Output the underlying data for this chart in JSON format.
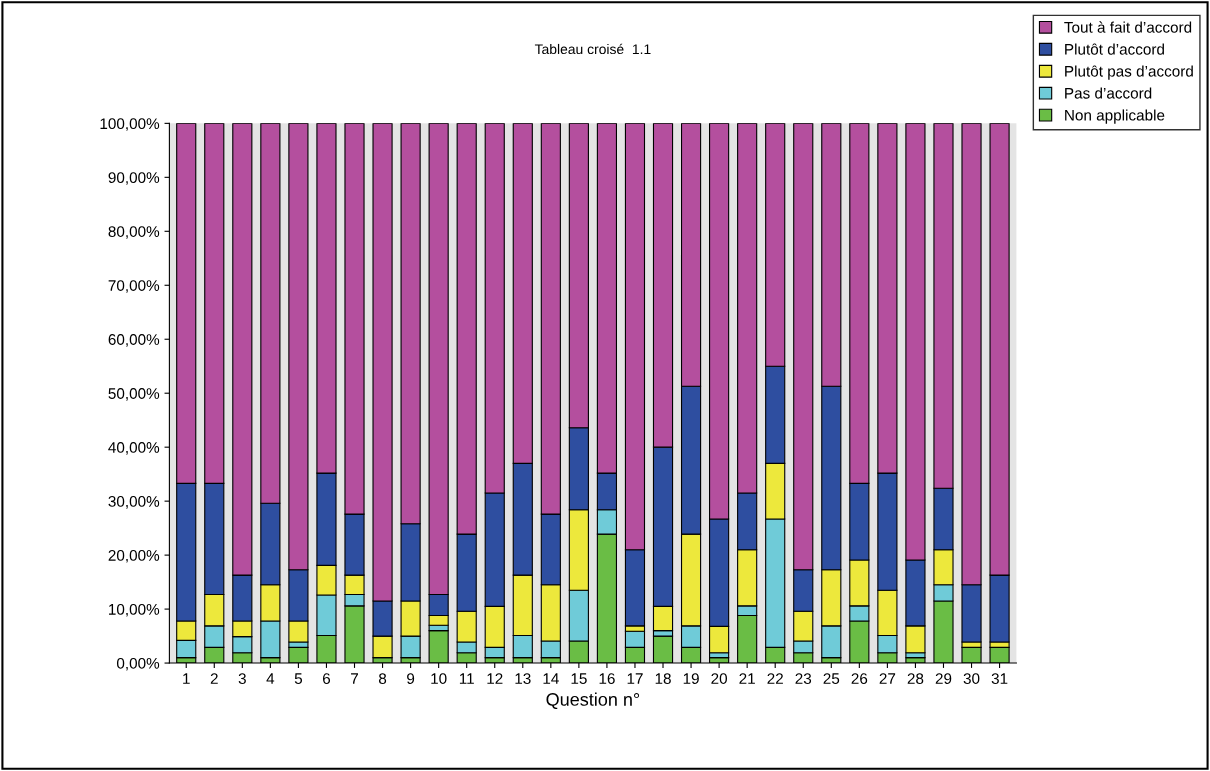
{
  "chart_data": {
    "type": "bar",
    "title": "Tableau croisé  1.1",
    "xlabel": "Question n°",
    "stacked": true,
    "categories": [
      "1",
      "2",
      "3",
      "4",
      "5",
      "6",
      "7",
      "8",
      "9",
      "10",
      "11",
      "12",
      "13",
      "14",
      "15",
      "16",
      "17",
      "18",
      "19",
      "20",
      "21",
      "22",
      "23",
      "25",
      "26",
      "27",
      "28",
      "29",
      "30",
      "31"
    ],
    "series": [
      {
        "name": "Non applicable",
        "color": "#6abd45",
        "values": [
          1,
          2.9,
          1.9,
          1,
          2.9,
          5.1,
          10.6,
          1,
          1,
          6,
          1.9,
          1,
          1,
          1,
          4.1,
          23.9,
          2.9,
          5,
          2.9,
          1,
          8.8,
          2.9,
          1.9,
          1,
          7.8,
          1.9,
          1,
          11.5,
          2.9,
          2.9
        ]
      },
      {
        "name": "Pas d’accord",
        "color": "#6fcbd8",
        "values": [
          3.2,
          4.0,
          3.0,
          6.8,
          1.0,
          7.5,
          2.1,
          0,
          4.0,
          1,
          2.0,
          1.9,
          4.1,
          3.1,
          9.4,
          4.5,
          3.0,
          1,
          4.0,
          0.9,
          1.8,
          23.8,
          2.2,
          5.9,
          2.8,
          3.2,
          0.9,
          3,
          0,
          0
        ]
      },
      {
        "name": "Plutôt pas d’accord",
        "color": "#ede83c",
        "values": [
          3.6,
          5.8,
          2.9,
          6.7,
          3.9,
          5.5,
          3.6,
          4.0,
          6.5,
          1.8,
          5.7,
          7.6,
          11.2,
          10.4,
          14.9,
          0,
          1.0,
          4.5,
          17,
          4.9,
          10.4,
          10.3,
          5.5,
          10.4,
          8.5,
          8.4,
          5,
          6.5,
          1,
          1
        ]
      },
      {
        "name": "Plutôt d’accord",
        "color": "#2e4ea0",
        "values": [
          25.5,
          20.6,
          8.5,
          15.1,
          9.5,
          17.1,
          11.3,
          6.5,
          14.3,
          3.9,
          14.3,
          21,
          20.7,
          13.1,
          15.2,
          6.8,
          14.1,
          29.5,
          27.4,
          19.9,
          10.5,
          18,
          7.7,
          34,
          14.2,
          21.7,
          12.2,
          11.4,
          10.6,
          12.4
        ]
      },
      {
        "name": "Tout à fait d’accord",
        "color": "#b44f9e",
        "values": [
          66.7,
          66.7,
          83.7,
          70.4,
          82.7,
          64.8,
          72.4,
          88.5,
          74.2,
          87.3,
          76.1,
          68.5,
          63,
          72.4,
          56.4,
          64.8,
          79,
          60,
          48.7,
          73.3,
          68.5,
          45,
          82.7,
          48.7,
          66.7,
          64.8,
          80.9,
          67.6,
          85.5,
          83.7
        ]
      }
    ],
    "ylim": [
      0,
      100
    ],
    "yticks": [
      {
        "value": 0,
        "label": "0,00%"
      },
      {
        "value": 10,
        "label": "10,00%"
      },
      {
        "value": 20,
        "label": "20,00%"
      },
      {
        "value": 30,
        "label": "30,00%"
      },
      {
        "value": 40,
        "label": "40,00%"
      },
      {
        "value": 50,
        "label": "50,00%"
      },
      {
        "value": 60,
        "label": "60,00%"
      },
      {
        "value": 70,
        "label": "70,00%"
      },
      {
        "value": 80,
        "label": "80,00%"
      },
      {
        "value": 90,
        "label": "90,00%"
      },
      {
        "value": 100,
        "label": "100,00%"
      }
    ],
    "grid": false,
    "legend": "top right"
  }
}
